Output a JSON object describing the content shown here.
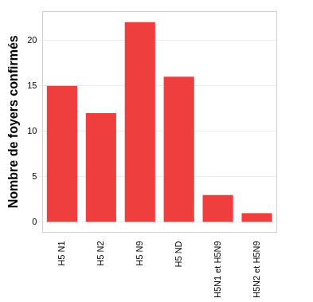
{
  "chart_data": {
    "type": "bar",
    "y_label": "Nombre de foyers confirmés",
    "categories": [
      "H5 N1",
      "H5 N2",
      "H5 N9",
      "H5 ND",
      "H5N1 et H5N9",
      "H5N2 et H5N9"
    ],
    "values": [
      15,
      12,
      22,
      16,
      3,
      1
    ],
    "color": "#ef3e3e",
    "ylim": [
      -1.1,
      23.2
    ],
    "yticks": [
      0,
      5,
      10,
      15,
      20
    ],
    "grid": true
  }
}
